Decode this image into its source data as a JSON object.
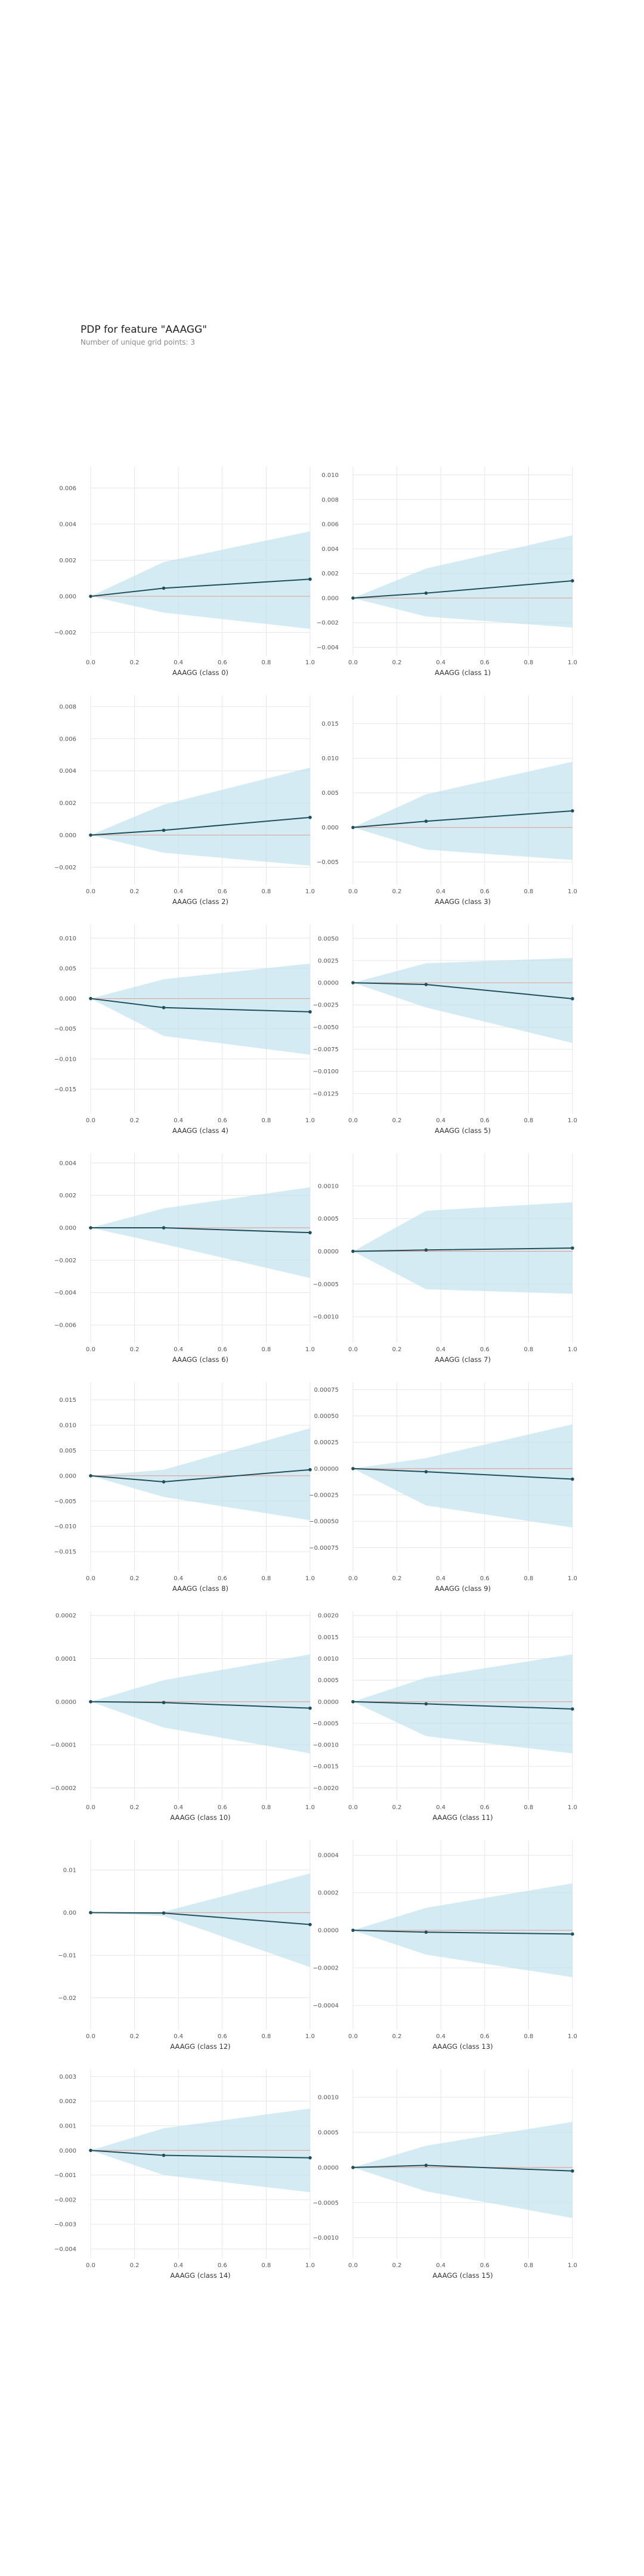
{
  "header": {
    "title": "PDP for feature \"AAAGG\"",
    "subtitle": "Number of unique grid points: 3"
  },
  "style": {
    "band_color": "#bfe0ee",
    "line_color": "#1f4f5a",
    "zero_line_color": "#e1a69a",
    "grid_color": "#e6e6e6",
    "tick_text_color": "#555555"
  },
  "chart_data": [
    {
      "type": "line",
      "xlabel": "AAAGG (class 0)",
      "x": [
        0,
        0.333,
        1
      ],
      "x_ticks": [
        "0.0",
        "0.2",
        "0.4",
        "0.6",
        "0.8",
        "1.0"
      ],
      "y_ticks": [
        "0.006",
        "0.004",
        "0.002",
        "0.000",
        "−0.002"
      ],
      "ylim": [
        -0.0033,
        0.0072
      ],
      "series": [
        {
          "values": [
            0,
            0.00045,
            0.00095
          ]
        }
      ],
      "band": {
        "upper": [
          0,
          0.0019,
          0.0036
        ],
        "lower": [
          0,
          -0.0009,
          -0.0018
        ]
      }
    },
    {
      "type": "line",
      "xlabel": "AAAGG (class 1)",
      "x": [
        0,
        0.333,
        1
      ],
      "x_ticks": [
        "0.0",
        "0.2",
        "0.4",
        "0.6",
        "0.8",
        "1.0"
      ],
      "y_ticks": [
        "0.010",
        "0.008",
        "0.006",
        "0.004",
        "0.002",
        "0.000",
        "−0.002",
        "−0.004"
      ],
      "ylim": [
        -0.0047,
        0.0107
      ],
      "series": [
        {
          "values": [
            0,
            0.0004,
            0.0014
          ]
        }
      ],
      "band": {
        "upper": [
          0,
          0.0024,
          0.0051
        ],
        "lower": [
          0,
          -0.0015,
          -0.0024
        ]
      }
    },
    {
      "type": "line",
      "xlabel": "AAAGG (class 2)",
      "x": [
        0,
        0.333,
        1
      ],
      "x_ticks": [
        "0.0",
        "0.2",
        "0.4",
        "0.6",
        "0.8",
        "1.0"
      ],
      "y_ticks": [
        "0.008",
        "0.006",
        "0.004",
        "0.002",
        "0.000",
        "−0.002"
      ],
      "ylim": [
        -0.0031,
        0.0087
      ],
      "series": [
        {
          "values": [
            0,
            0.0003,
            0.0011
          ]
        }
      ],
      "band": {
        "upper": [
          0,
          0.0019,
          0.0042
        ],
        "lower": [
          0,
          -0.0011,
          -0.0019
        ]
      }
    },
    {
      "type": "line",
      "xlabel": "AAAGG (class 3)",
      "x": [
        0,
        0.333,
        1
      ],
      "x_ticks": [
        "0.0",
        "0.2",
        "0.4",
        "0.6",
        "0.8",
        "1.0"
      ],
      "y_ticks": [
        "0.015",
        "0.010",
        "0.005",
        "0.000",
        "−0.005"
      ],
      "ylim": [
        -0.0083,
        0.0191
      ],
      "series": [
        {
          "values": [
            0,
            0.0009,
            0.0024
          ]
        }
      ],
      "band": {
        "upper": [
          0,
          0.0048,
          0.0095
        ],
        "lower": [
          0,
          -0.0032,
          -0.0047
        ]
      }
    },
    {
      "type": "line",
      "xlabel": "AAAGG (class 4)",
      "x": [
        0,
        0.333,
        1
      ],
      "x_ticks": [
        "0.0",
        "0.2",
        "0.4",
        "0.6",
        "0.8",
        "1.0"
      ],
      "y_ticks": [
        "0.010",
        "0.005",
        "0.000",
        "−0.005",
        "−0.010",
        "−0.015"
      ],
      "ylim": [
        -0.0191,
        0.0123
      ],
      "series": [
        {
          "values": [
            0,
            -0.0015,
            -0.0022
          ]
        }
      ],
      "band": {
        "upper": [
          0,
          0.0032,
          0.0058
        ],
        "lower": [
          0,
          -0.0062,
          -0.0093
        ]
      }
    },
    {
      "type": "line",
      "xlabel": "AAAGG (class 5)",
      "x": [
        0,
        0.333,
        1
      ],
      "x_ticks": [
        "0.0",
        "0.2",
        "0.4",
        "0.6",
        "0.8",
        "1.0"
      ],
      "y_ticks": [
        "0.0050",
        "0.0025",
        "0.0000",
        "−0.0025",
        "−0.0050",
        "−0.0075",
        "−0.0100",
        "−0.0125"
      ],
      "ylim": [
        -0.0148,
        0.0066
      ],
      "series": [
        {
          "values": [
            0,
            -0.0002,
            -0.0018
          ]
        }
      ],
      "band": {
        "upper": [
          0,
          0.0022,
          0.0028
        ],
        "lower": [
          0,
          -0.0028,
          -0.0068
        ]
      }
    },
    {
      "type": "line",
      "xlabel": "AAAGG (class 6)",
      "x": [
        0,
        0.333,
        1
      ],
      "x_ticks": [
        "0.0",
        "0.2",
        "0.4",
        "0.6",
        "0.8",
        "1.0"
      ],
      "y_ticks": [
        "0.004",
        "0.002",
        "0.000",
        "−0.002",
        "−0.004",
        "−0.006"
      ],
      "ylim": [
        -0.0071,
        0.0046
      ],
      "series": [
        {
          "values": [
            0,
            0,
            -0.0003
          ]
        }
      ],
      "band": {
        "upper": [
          0,
          0.0012,
          0.0025
        ],
        "lower": [
          0,
          -0.001,
          -0.0031
        ]
      }
    },
    {
      "type": "line",
      "xlabel": "AAAGG (class 7)",
      "x": [
        0,
        0.333,
        1
      ],
      "x_ticks": [
        "0.0",
        "0.2",
        "0.4",
        "0.6",
        "0.8",
        "1.0"
      ],
      "y_ticks": [
        "0.0010",
        "0.0005",
        "0.0000",
        "−0.0005",
        "−0.0010"
      ],
      "ylim": [
        -0.0014,
        0.0015
      ],
      "series": [
        {
          "values": [
            0,
            2e-05,
            5e-05
          ]
        }
      ],
      "band": {
        "upper": [
          0,
          0.00062,
          0.00075
        ],
        "lower": [
          0,
          -0.00058,
          -0.00065
        ]
      }
    },
    {
      "type": "line",
      "xlabel": "AAAGG (class 8)",
      "x": [
        0,
        0.333,
        1
      ],
      "x_ticks": [
        "0.0",
        "0.2",
        "0.4",
        "0.6",
        "0.8",
        "1.0"
      ],
      "y_ticks": [
        "0.015",
        "0.010",
        "0.005",
        "0.000",
        "−0.005",
        "−0.010",
        "−0.015"
      ],
      "ylim": [
        -0.019,
        0.0185
      ],
      "series": [
        {
          "values": [
            0,
            -0.0012,
            0.0012
          ]
        }
      ],
      "band": {
        "upper": [
          0,
          0.0012,
          0.0094
        ],
        "lower": [
          0,
          -0.0042,
          -0.0088
        ]
      }
    },
    {
      "type": "line",
      "xlabel": "AAAGG (class 9)",
      "x": [
        0,
        0.333,
        1
      ],
      "x_ticks": [
        "0.0",
        "0.2",
        "0.4",
        "0.6",
        "0.8",
        "1.0"
      ],
      "y_ticks": [
        "0.00075",
        "0.00050",
        "0.00025",
        "0.00000",
        "−0.00025",
        "−0.00050",
        "−0.00075"
      ],
      "ylim": [
        -0.00098,
        0.00082
      ],
      "series": [
        {
          "values": [
            0,
            -3e-05,
            -0.0001
          ]
        }
      ],
      "band": {
        "upper": [
          0,
          0.0001,
          0.00042
        ],
        "lower": [
          0,
          -0.00035,
          -0.00056
        ]
      }
    },
    {
      "type": "line",
      "xlabel": "AAAGG (class 10)",
      "x": [
        0,
        0.333,
        1
      ],
      "x_ticks": [
        "0.0",
        "0.2",
        "0.4",
        "0.6",
        "0.8",
        "1.0"
      ],
      "y_ticks": [
        "0.0002",
        "0.0001",
        "0.0000",
        "−0.0001",
        "−0.0002"
      ],
      "ylim": [
        -0.00023,
        0.00021
      ],
      "series": [
        {
          "values": [
            0,
            -2e-06,
            -1.5e-05
          ]
        }
      ],
      "band": {
        "upper": [
          0,
          5e-05,
          0.00011
        ],
        "lower": [
          0,
          -6e-05,
          -0.00012
        ]
      }
    },
    {
      "type": "line",
      "xlabel": "AAAGG (class 11)",
      "x": [
        0,
        0.333,
        1
      ],
      "x_ticks": [
        "0.0",
        "0.2",
        "0.4",
        "0.6",
        "0.8",
        "1.0"
      ],
      "y_ticks": [
        "0.0020",
        "0.0015",
        "0.0010",
        "0.0005",
        "0.0000",
        "−0.0005",
        "−0.0010",
        "−0.0015",
        "−0.0020"
      ],
      "ylim": [
        -0.0023,
        0.0021
      ],
      "series": [
        {
          "values": [
            0,
            -5e-05,
            -0.00017
          ]
        }
      ],
      "band": {
        "upper": [
          0,
          0.00056,
          0.0011
        ],
        "lower": [
          0,
          -0.0008,
          -0.0012
        ]
      }
    },
    {
      "type": "line",
      "xlabel": "AAAGG (class 12)",
      "x": [
        0,
        0.333,
        1
      ],
      "x_ticks": [
        "0.0",
        "0.2",
        "0.4",
        "0.6",
        "0.8",
        "1.0"
      ],
      "y_ticks": [
        "0.01",
        "0.00",
        "−0.01",
        "−0.02"
      ],
      "ylim": [
        -0.0275,
        0.017
      ],
      "series": [
        {
          "values": [
            0,
            -0.0001,
            -0.0028
          ]
        }
      ],
      "band": {
        "upper": [
          0,
          0.0002,
          0.0092
        ],
        "lower": [
          0,
          -0.0008,
          -0.0128
        ]
      }
    },
    {
      "type": "line",
      "xlabel": "AAAGG (class 13)",
      "x": [
        0,
        0.333,
        1
      ],
      "x_ticks": [
        "0.0",
        "0.2",
        "0.4",
        "0.6",
        "0.8",
        "1.0"
      ],
      "y_ticks": [
        "0.0004",
        "0.0002",
        "0.0000",
        "−0.0002",
        "−0.0004"
      ],
      "ylim": [
        -0.00053,
        0.00048
      ],
      "series": [
        {
          "values": [
            0,
            -1e-05,
            -2e-05
          ]
        }
      ],
      "band": {
        "upper": [
          0,
          0.00012,
          0.00025
        ],
        "lower": [
          0,
          -0.00013,
          -0.00025
        ]
      }
    },
    {
      "type": "line",
      "xlabel": "AAAGG (class 14)",
      "x": [
        0,
        0.333,
        1
      ],
      "x_ticks": [
        "0.0",
        "0.2",
        "0.4",
        "0.6",
        "0.8",
        "1.0"
      ],
      "y_ticks": [
        "0.003",
        "0.002",
        "0.001",
        "0.000",
        "−0.001",
        "−0.002",
        "−0.003",
        "−0.004"
      ],
      "ylim": [
        -0.0044,
        0.0033
      ],
      "series": [
        {
          "values": [
            0,
            -0.0002,
            -0.0003
          ]
        }
      ],
      "band": {
        "upper": [
          0,
          0.0009,
          0.0017
        ],
        "lower": [
          0,
          -0.001,
          -0.0017
        ]
      }
    },
    {
      "type": "line",
      "xlabel": "AAAGG (class 15)",
      "x": [
        0,
        0.333,
        1
      ],
      "x_ticks": [
        "0.0",
        "0.2",
        "0.4",
        "0.6",
        "0.8",
        "1.0"
      ],
      "y_ticks": [
        "0.0010",
        "0.0005",
        "0.0000",
        "−0.0005",
        "−0.0010"
      ],
      "ylim": [
        -0.0013,
        0.0014
      ],
      "series": [
        {
          "values": [
            0,
            3e-05,
            -5e-05
          ]
        }
      ],
      "band": {
        "upper": [
          0,
          0.00031,
          0.00065
        ],
        "lower": [
          0,
          -0.00034,
          -0.00072
        ]
      }
    }
  ]
}
